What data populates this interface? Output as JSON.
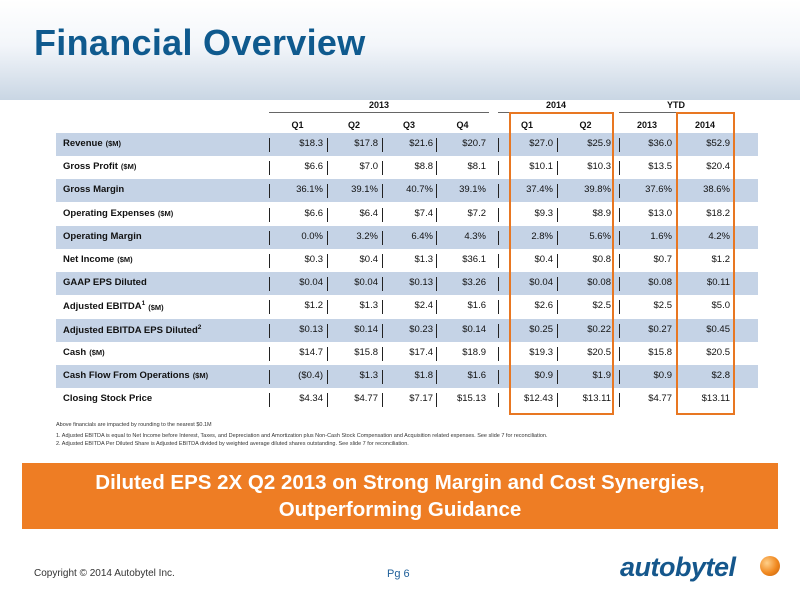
{
  "title": "Financial Overview",
  "groups": [
    {
      "label": "2013"
    },
    {
      "label": "2014"
    },
    {
      "label": "YTD"
    }
  ],
  "columns": [
    "Q1",
    "Q2",
    "Q3",
    "Q4",
    "Q1",
    "Q2",
    "2013",
    "2014"
  ],
  "rows": [
    {
      "label": "Revenue",
      "unit": "($M)",
      "values": [
        "$18.3",
        "$17.8",
        "$21.6",
        "$20.7",
        "$27.0",
        "$25.9",
        "$36.0",
        "$52.9"
      ]
    },
    {
      "label": "Gross Profit",
      "unit": "($M)",
      "values": [
        "$6.6",
        "$7.0",
        "$8.8",
        "$8.1",
        "$10.1",
        "$10.3",
        "$13.5",
        "$20.4"
      ]
    },
    {
      "label": "Gross Margin",
      "unit": "",
      "values": [
        "36.1%",
        "39.1%",
        "40.7%",
        "39.1%",
        "37.4%",
        "39.8%",
        "37.6%",
        "38.6%"
      ]
    },
    {
      "label": "Operating Expenses",
      "unit": "($M)",
      "values": [
        "$6.6",
        "$6.4",
        "$7.4",
        "$7.2",
        "$9.3",
        "$8.9",
        "$13.0",
        "$18.2"
      ]
    },
    {
      "label": "Operating Margin",
      "unit": "",
      "values": [
        "0.0%",
        "3.2%",
        "6.4%",
        "4.3%",
        "2.8%",
        "5.6%",
        "1.6%",
        "4.2%"
      ]
    },
    {
      "label": "Net Income",
      "unit": "($M)",
      "values": [
        "$0.3",
        "$0.4",
        "$1.3",
        "$36.1",
        "$0.4",
        "$0.8",
        "$0.7",
        "$1.2"
      ]
    },
    {
      "label": "GAAP EPS Diluted",
      "unit": "",
      "values": [
        "$0.04",
        "$0.04",
        "$0.13",
        "$3.26",
        "$0.04",
        "$0.08",
        "$0.08",
        "$0.11"
      ]
    },
    {
      "label": "Adjusted EBITDA",
      "sup": "1",
      "unit": "($M)",
      "values": [
        "$1.2",
        "$1.3",
        "$2.4",
        "$1.6",
        "$2.6",
        "$2.5",
        "$2.5",
        "$5.0"
      ]
    },
    {
      "label": "Adjusted EBITDA EPS Diluted",
      "sup": "2",
      "unit": "",
      "values": [
        "$0.13",
        "$0.14",
        "$0.23",
        "$0.14",
        "$0.25",
        "$0.22",
        "$0.27",
        "$0.45"
      ]
    },
    {
      "label": "Cash",
      "unit": "($M)",
      "values": [
        "$14.7",
        "$15.8",
        "$17.4",
        "$18.9",
        "$19.3",
        "$20.5",
        "$15.8",
        "$20.5"
      ]
    },
    {
      "label": "Cash Flow From Operations",
      "unit": "($M)",
      "values": [
        "($0.4)",
        "$1.3",
        "$1.8",
        "$1.6",
        "$0.9",
        "$1.9",
        "$0.9",
        "$2.8"
      ]
    },
    {
      "label": "Closing Stock Price",
      "unit": "",
      "values": [
        "$4.34",
        "$4.77",
        "$7.17",
        "$15.13",
        "$12.43",
        "$13.11",
        "$4.77",
        "$13.11"
      ]
    }
  ],
  "footnotes": {
    "rounding": "Above financials are impacted by rounding to the nearest $0.1M",
    "note1": "1.  Adjusted EBITDA is equal to Net Income before Interest, Taxes, and Depreciation and Amortization plus Non-Cash Stock Compensation and Acquisition related expenses. See slide 7 for reconciliation.",
    "note2": "2.  Adjusted EBITDA Per Diluted Share is Adjusted EBITDA divided by weighted average diluted shares outstanding. See slide 7 for reconciliation."
  },
  "banner": {
    "line1": "Diluted EPS 2X Q2 2013 on Strong Margin and Cost Synergies,",
    "line2": "Outperforming Guidance"
  },
  "footer": {
    "copyright": "Copyright © 2014 Autobytel Inc.",
    "page": "Pg 6",
    "logo": "autobytel"
  },
  "colors": {
    "title": "#0f5a8e",
    "row_shade": "#c5d3e6",
    "highlight": "#e87722",
    "banner": "#ee7d24"
  }
}
